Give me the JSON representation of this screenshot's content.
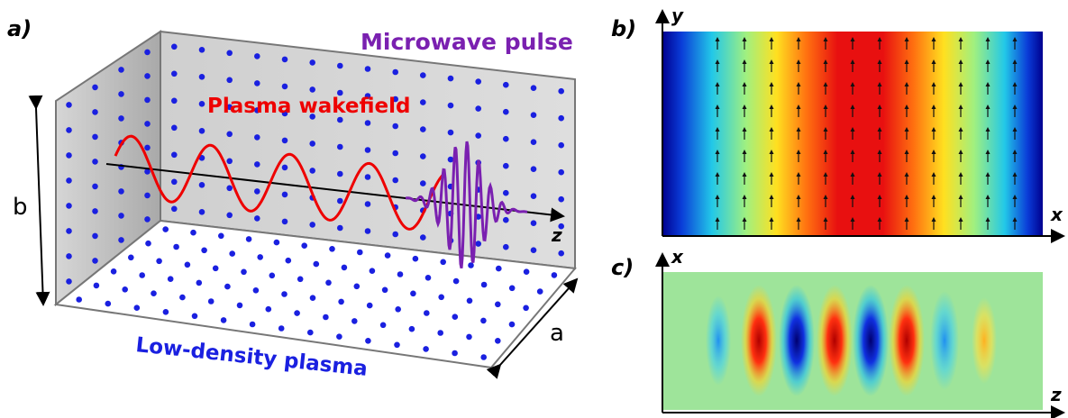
{
  "panel_a": {
    "label": "a)",
    "microwave_label": "Microwave pulse",
    "wakefield_label": "Plasma wakefield",
    "axis_z": "z",
    "dim_b": "b",
    "dim_a": "a",
    "plasma_label": "Low-density plasma"
  },
  "panel_b": {
    "label": "b)",
    "axis_y": "y",
    "axis_x": "x"
  },
  "panel_c": {
    "label": "c)",
    "axis_x": "x",
    "axis_z": "z"
  }
}
